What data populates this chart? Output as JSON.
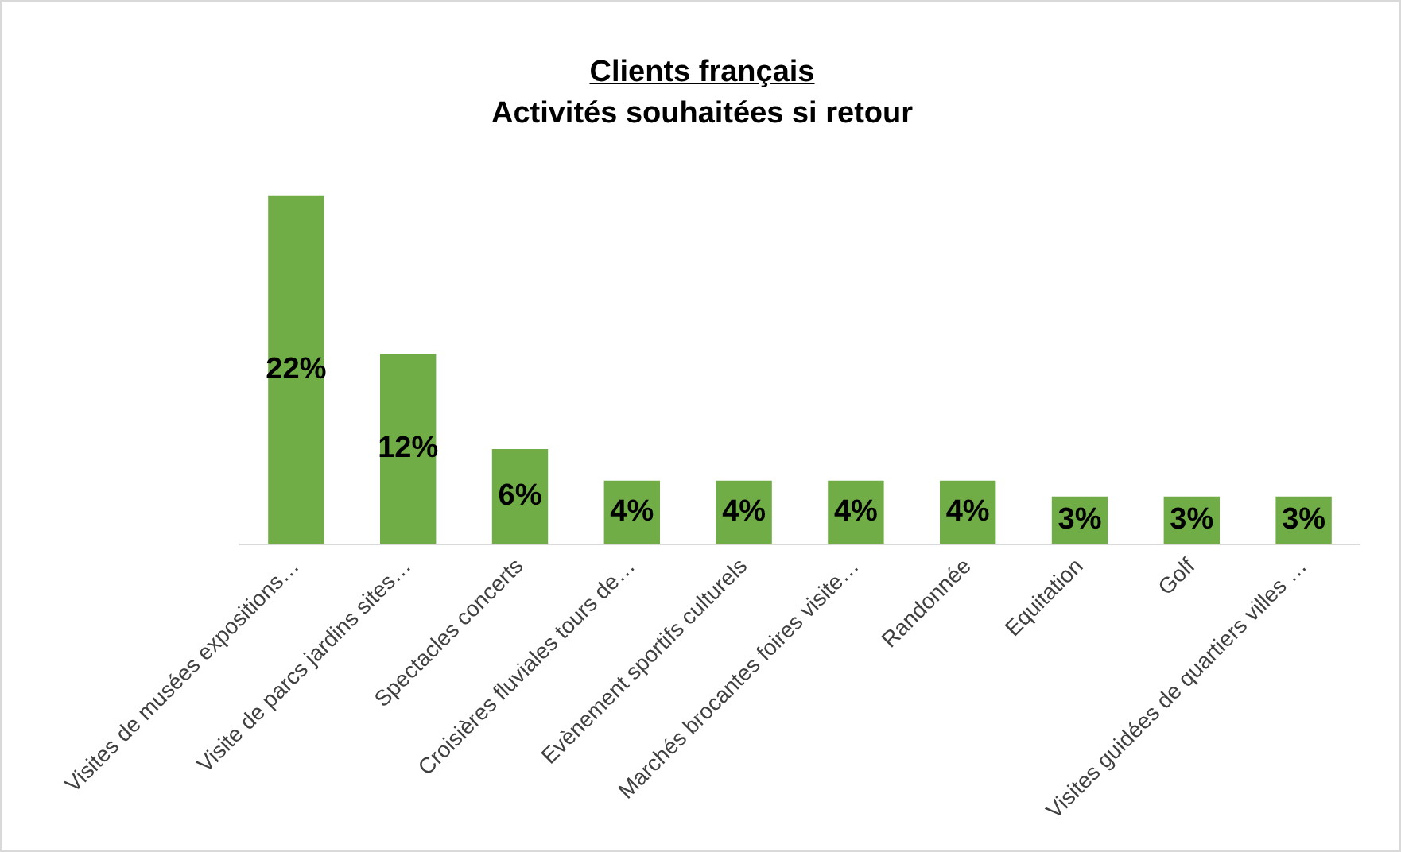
{
  "chart_data": {
    "type": "bar",
    "title": "Clients français",
    "subtitle": "Activités souhaitées si retour",
    "categories": [
      "Visites de musées expositions…",
      "Visite de parcs jardins sites…",
      "Spectacles concerts",
      "Croisières fluviales tours de…",
      "Evènement sportifs culturels",
      "Marchés brocantes foires visite…",
      "Randonnée",
      "Equitation",
      "Golf",
      "Visites guidées de quartiers villes …"
    ],
    "values": [
      22,
      12,
      6,
      4,
      4,
      4,
      4,
      3,
      3,
      3
    ],
    "value_labels": [
      "22%",
      "12%",
      "6%",
      "4%",
      "4%",
      "4%",
      "4%",
      "3%",
      "3%",
      "3%"
    ],
    "color": "#70ad47",
    "grid": false,
    "legend": false,
    "tick_labels": "x"
  }
}
